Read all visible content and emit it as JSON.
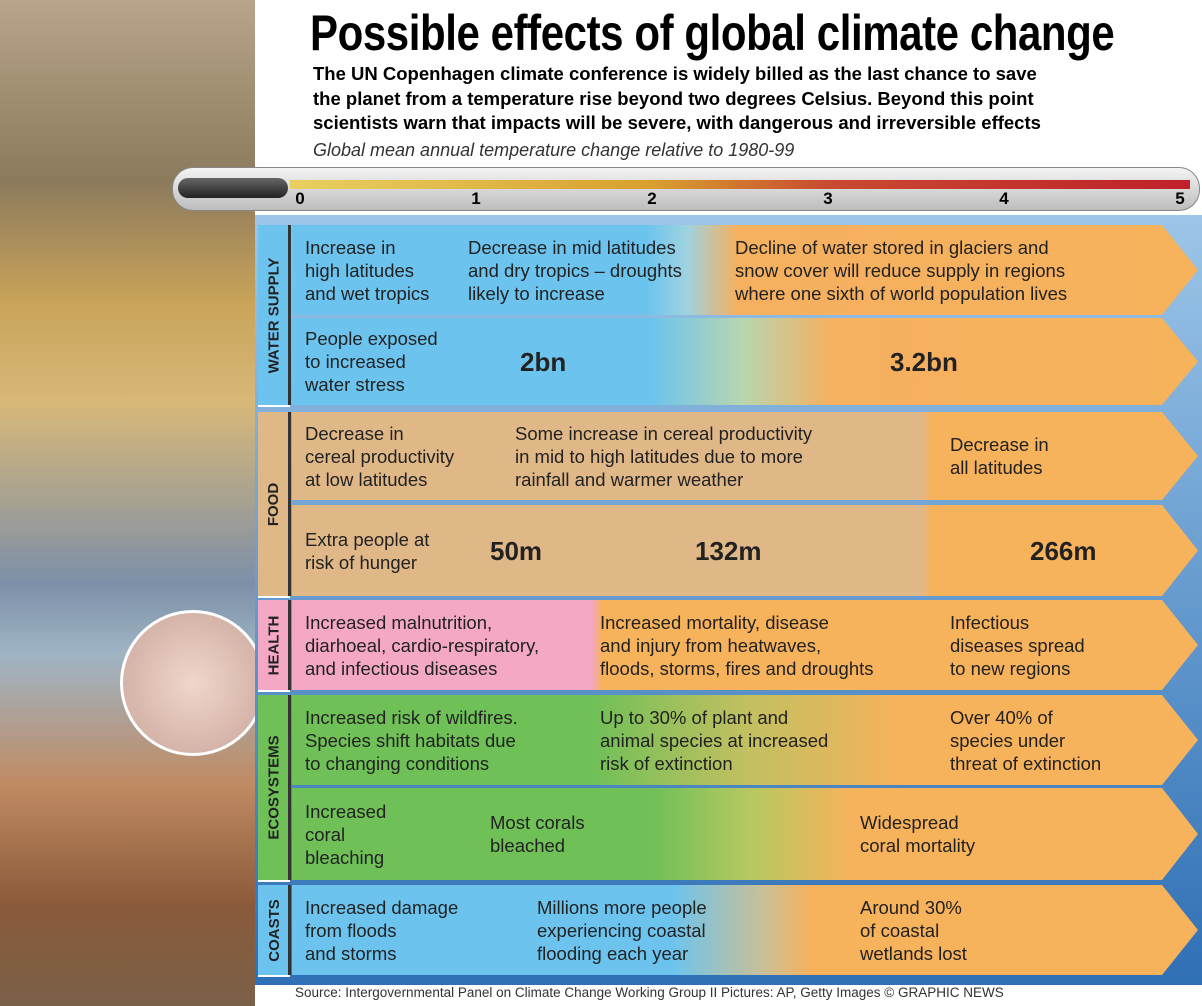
{
  "title": "Possible effects of global climate change",
  "subtitle": [
    "The UN Copenhagen climate conference is widely billed as the last chance to save",
    "the planet from a temperature rise beyond two degrees Celsius. Beyond this point",
    "scientists warn that impacts will be severe, with dangerous and irreversible effects"
  ],
  "scale_label": "Global mean annual temperature change relative to 1980-99",
  "scale_ticks": [
    0,
    1,
    2,
    3,
    4,
    5
  ],
  "sections": [
    {
      "name": "WATER SUPPLY",
      "rows": [
        {
          "cells": [
            {
              "lines": [
                "Increase in",
                "high latitudes",
                "and wet tropics"
              ]
            },
            {
              "lines": [
                "Decrease in mid latitudes",
                "and dry tropics – droughts",
                "likely to increase"
              ]
            },
            {
              "lines": [
                "Decline of water stored in glaciers and",
                "snow cover will reduce supply in regions",
                "where one sixth of world population lives"
              ]
            }
          ]
        },
        {
          "cells": [
            {
              "lines": [
                "People exposed",
                "to increased",
                "water stress"
              ]
            },
            {
              "lines": [
                "2bn"
              ]
            },
            {
              "lines": [
                "3.2bn"
              ]
            }
          ]
        }
      ]
    },
    {
      "name": "FOOD",
      "rows": [
        {
          "cells": [
            {
              "lines": [
                "Decrease in",
                "cereal productivity",
                "at low latitudes"
              ]
            },
            {
              "lines": [
                "Some increase in cereal productivity",
                "in mid to high latitudes due to more",
                "rainfall and warmer weather"
              ]
            },
            {
              "lines": [
                "Decrease in",
                "all latitudes"
              ]
            }
          ]
        },
        {
          "cells": [
            {
              "lines": [
                "Extra people at",
                "risk of hunger"
              ]
            },
            {
              "lines": [
                "50m"
              ]
            },
            {
              "lines": [
                "132m"
              ]
            },
            {
              "lines": [
                "266m"
              ]
            }
          ]
        }
      ]
    },
    {
      "name": "HEALTH",
      "rows": [
        {
          "cells": [
            {
              "lines": [
                "Increased malnutrition,",
                "diarhoeal, cardio-respiratory,",
                "and infectious diseases"
              ]
            },
            {
              "lines": [
                "Increased mortality, disease",
                "and injury from heatwaves,",
                "floods, storms, fires and droughts"
              ]
            },
            {
              "lines": [
                "Infectious",
                "diseases spread",
                "to new regions"
              ]
            }
          ]
        }
      ]
    },
    {
      "name": "ECOSYSTEMS",
      "rows": [
        {
          "cells": [
            {
              "lines": [
                "Increased risk of wildfires.",
                "Species shift habitats due",
                "to changing conditions"
              ]
            },
            {
              "lines": [
                "Up to 30% of plant and",
                "animal species at increased",
                "risk of extinction"
              ]
            },
            {
              "lines": [
                "Over 40% of",
                "species under",
                "threat of extinction"
              ]
            }
          ]
        },
        {
          "cells": [
            {
              "lines": [
                "Increased",
                "coral",
                "bleaching"
              ]
            },
            {
              "lines": [
                "Most corals",
                "bleached"
              ]
            },
            {
              "lines": [
                "Widespread",
                "coral mortality"
              ]
            }
          ]
        }
      ]
    },
    {
      "name": "COASTS",
      "rows": [
        {
          "cells": [
            {
              "lines": [
                "Increased damage",
                "from floods",
                "and storms"
              ]
            },
            {
              "lines": [
                "Millions more people",
                "experiencing coastal",
                "flooding each year"
              ]
            },
            {
              "lines": [
                "Around 30%",
                "of coastal",
                "wetlands lost"
              ]
            }
          ]
        }
      ]
    }
  ],
  "source": "Source: Intergovernmental Panel on Climate Change Working Group II  Pictures: AP, Getty Images  © GRAPHIC NEWS"
}
